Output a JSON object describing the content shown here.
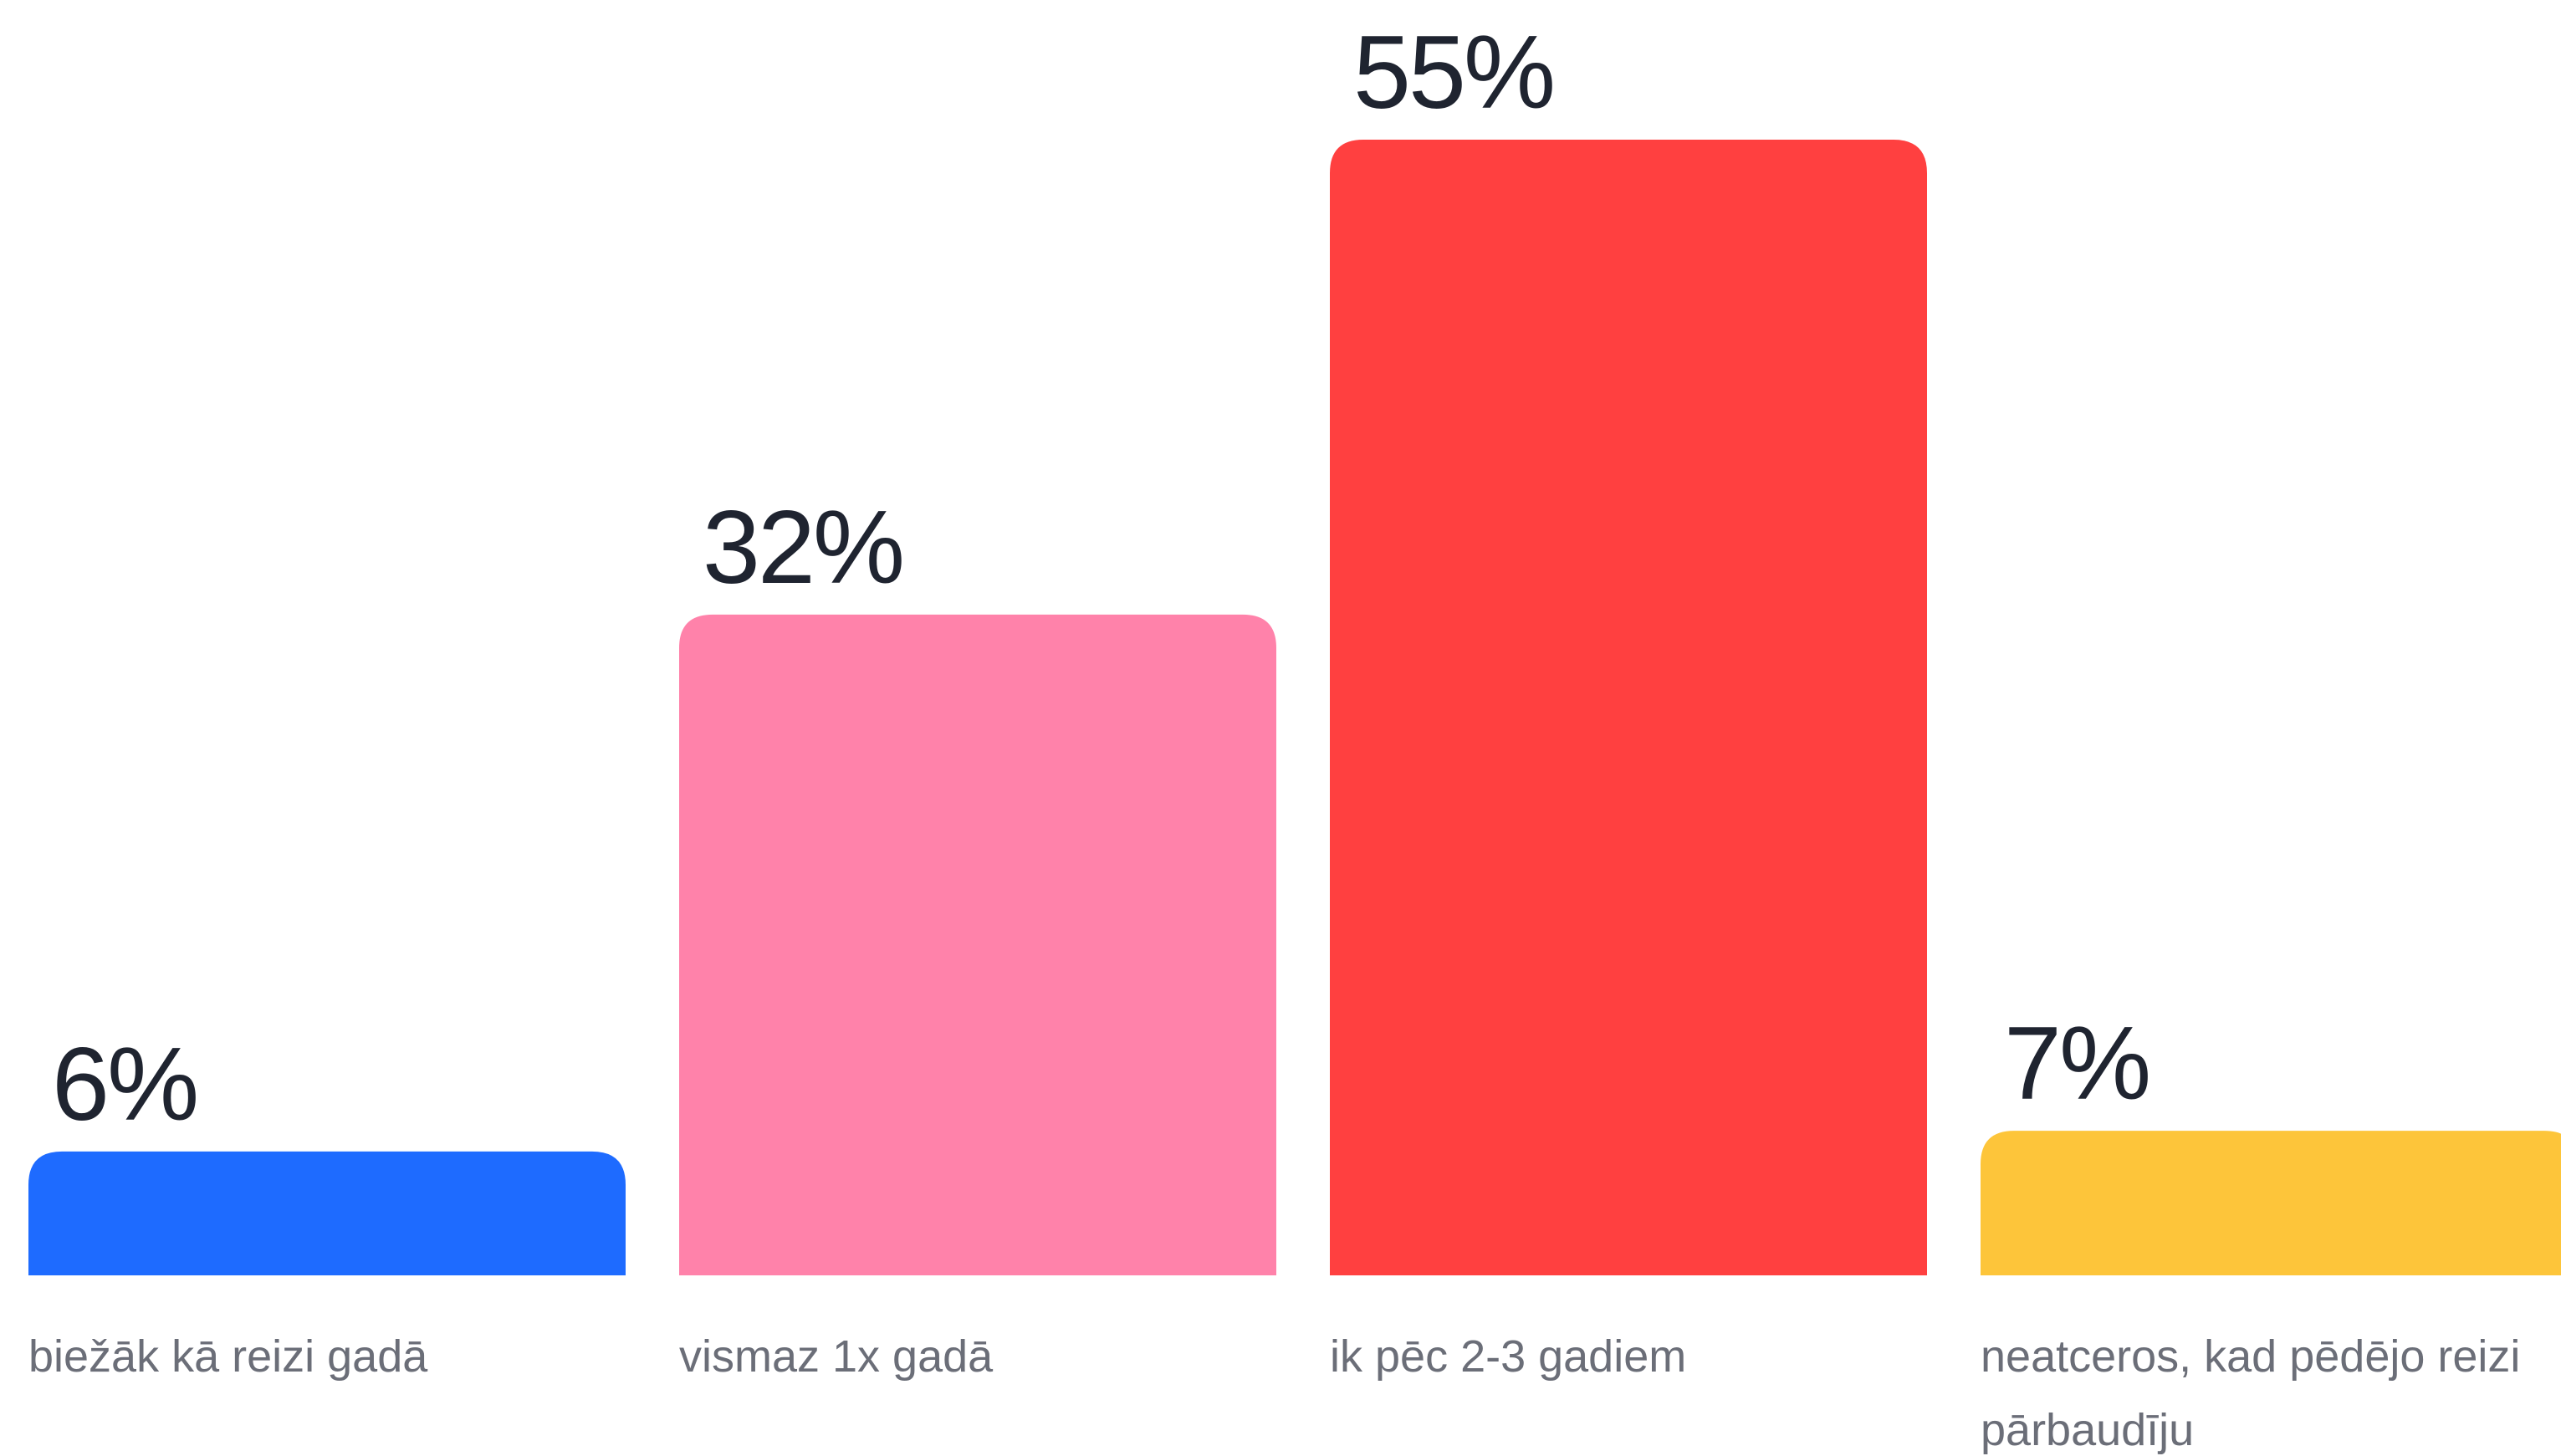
{
  "chart_data": {
    "type": "bar",
    "categories": [
      "biežāk kā reizi gadā",
      "vismaz 1x gadā",
      "ik pēc 2-3 gadiem",
      "neatceros, kad pēdējo reizi pārbaudīju"
    ],
    "values": [
      6,
      32,
      55,
      7
    ],
    "value_labels": [
      "6%",
      "32%",
      "55%",
      "7%"
    ],
    "colors": [
      "#1e6bff",
      "#ff82aa",
      "#ff4040",
      "#fdc53a"
    ],
    "unit": "%",
    "title": "",
    "xlabel": "",
    "ylabel": "",
    "ylim": [
      0,
      55
    ],
    "grid": false,
    "legend": "none"
  }
}
